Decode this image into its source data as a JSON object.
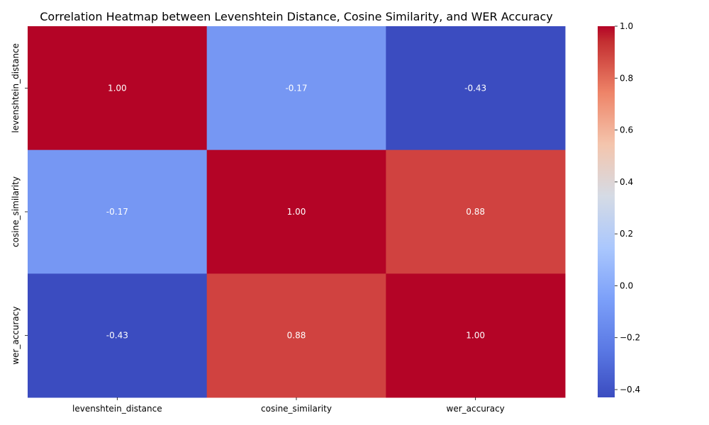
{
  "chart_data": {
    "type": "heatmap",
    "title": "Correlation Heatmap between Levenshtein Distance, Cosine Similarity, and WER Accuracy",
    "xlabel": "",
    "ylabel": "",
    "x_categories": [
      "levenshtein_distance",
      "cosine_similarity",
      "wer_accuracy"
    ],
    "y_categories": [
      "levenshtein_distance",
      "cosine_similarity",
      "wer_accuracy"
    ],
    "values": [
      [
        1.0,
        -0.17,
        -0.43
      ],
      [
        -0.17,
        1.0,
        0.88
      ],
      [
        -0.43,
        0.88,
        1.0
      ]
    ],
    "value_labels": [
      [
        "1.00",
        "-0.17",
        "-0.43"
      ],
      [
        "-0.17",
        "1.00",
        "0.88"
      ],
      [
        "-0.43",
        "0.88",
        "1.00"
      ]
    ],
    "colormap": "coolwarm",
    "colorbar": {
      "range": [
        -0.43,
        1.0
      ],
      "ticks": [
        1.0,
        0.8,
        0.6,
        0.4,
        0.2,
        0.0,
        -0.2,
        -0.4
      ],
      "tick_labels": [
        "1.0",
        "0.8",
        "0.6",
        "0.4",
        "0.2",
        "0.0",
        "−0.2",
        "−0.4"
      ]
    }
  }
}
